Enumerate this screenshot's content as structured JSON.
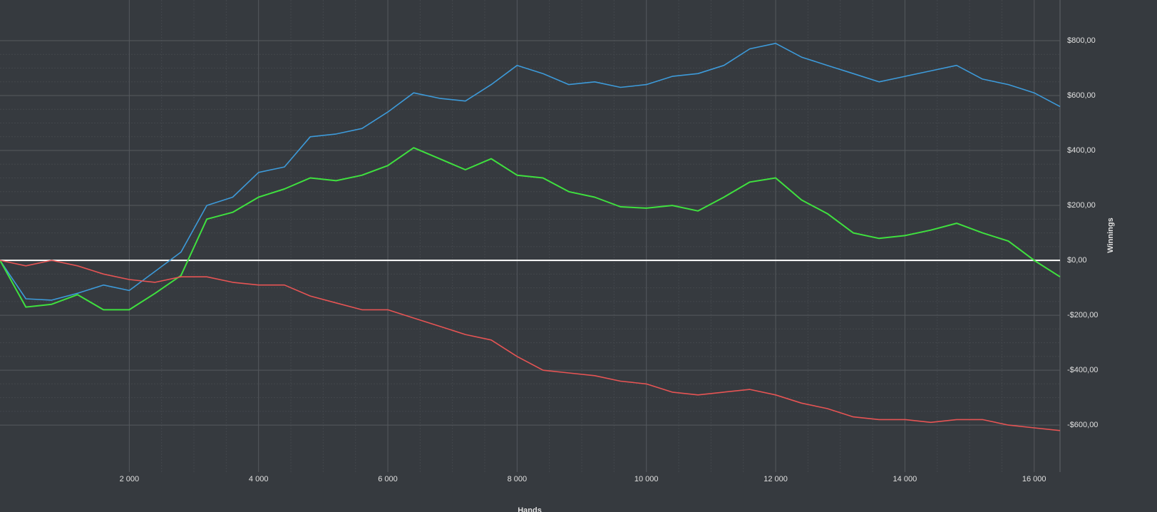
{
  "chart_data": {
    "type": "line",
    "y_label": "Winnings",
    "x_label": "Hands",
    "x": [
      0,
      400,
      800,
      1200,
      1600,
      2000,
      2400,
      2800,
      3200,
      3600,
      4000,
      4400,
      4800,
      5200,
      5600,
      6000,
      6400,
      6800,
      7200,
      7600,
      8000,
      8400,
      8800,
      9200,
      9600,
      10000,
      10400,
      10800,
      11200,
      11600,
      12000,
      12400,
      12800,
      13200,
      13600,
      14000,
      14400,
      14800,
      15200,
      15600,
      16000,
      16400
    ],
    "series": [
      {
        "color": "#3d9ad9",
        "values": [
          0,
          -140,
          -145,
          -120,
          -90,
          -110,
          -40,
          30,
          200,
          230,
          320,
          340,
          450,
          460,
          480,
          540,
          610,
          590,
          580,
          640,
          710,
          680,
          640,
          650,
          630,
          640,
          670,
          680,
          710,
          770,
          790,
          740,
          710,
          680,
          650,
          670,
          690,
          710,
          660,
          640,
          610,
          560
        ]
      },
      {
        "color": "#3fe03f",
        "values": [
          0,
          -170,
          -160,
          -125,
          -180,
          -180,
          -120,
          -55,
          150,
          175,
          230,
          260,
          300,
          290,
          310,
          345,
          410,
          370,
          330,
          370,
          310,
          300,
          250,
          230,
          195,
          190,
          200,
          180,
          230,
          285,
          300,
          220,
          170,
          100,
          80,
          90,
          110,
          135,
          100,
          70,
          0,
          -60
        ]
      },
      {
        "color": "#e65454",
        "values": [
          0,
          -20,
          0,
          -20,
          -50,
          -70,
          -80,
          -60,
          -60,
          -80,
          -90,
          -90,
          -130,
          -155,
          -180,
          -180,
          -210,
          -240,
          -270,
          -290,
          -350,
          -400,
          -410,
          -420,
          -440,
          -450,
          -480,
          -490,
          -480,
          -470,
          -490,
          -520,
          -540,
          -570,
          -580,
          -580,
          -590,
          -580,
          -580,
          -600,
          -610,
          -620
        ]
      }
    ],
    "xlim": [
      0,
      16400
    ],
    "ylim": [
      -771,
      948
    ],
    "xticks": [
      {
        "value": 2000,
        "label": "2 000"
      },
      {
        "value": 4000,
        "label": "4 000"
      },
      {
        "value": 6000,
        "label": "6 000"
      },
      {
        "value": 8000,
        "label": "8 000"
      },
      {
        "value": 10000,
        "label": "10 000"
      },
      {
        "value": 12000,
        "label": "12 000"
      },
      {
        "value": 14000,
        "label": "14 000"
      },
      {
        "value": 16000,
        "label": "16 000"
      }
    ],
    "yticks": [
      {
        "value": -600,
        "label": "-$600,00"
      },
      {
        "value": -400,
        "label": "-$400,00"
      },
      {
        "value": -200,
        "label": "-$200,00"
      },
      {
        "value": 0,
        "label": "$0,00"
      },
      {
        "value": 200,
        "label": "$200,00"
      },
      {
        "value": 400,
        "label": "$400,00"
      },
      {
        "value": 600,
        "label": "$600,00"
      },
      {
        "value": 800,
        "label": "$800,00"
      }
    ],
    "grid": true
  }
}
